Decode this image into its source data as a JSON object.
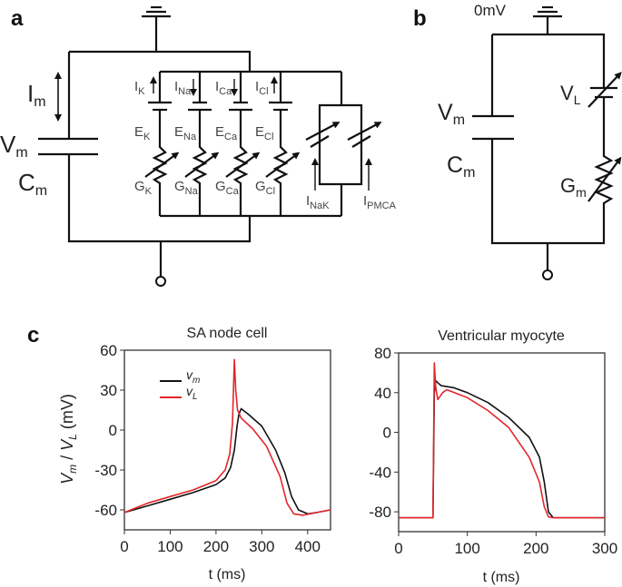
{
  "panels": {
    "a": "a",
    "b": "b",
    "c": "c"
  },
  "circuit_a": {
    "Im": {
      "main": "I",
      "sub": "m"
    },
    "Vm": {
      "main": "V",
      "sub": "m"
    },
    "Cm": {
      "main": "C",
      "sub": "m"
    },
    "currents": [
      {
        "main": "I",
        "sub": "K"
      },
      {
        "main": "I",
        "sub": "Na"
      },
      {
        "main": "I",
        "sub": "Ca"
      },
      {
        "main": "I",
        "sub": "Cl"
      }
    ],
    "reversal": [
      {
        "main": "E",
        "sub": "K"
      },
      {
        "main": "E",
        "sub": "Na"
      },
      {
        "main": "E",
        "sub": "Ca"
      },
      {
        "main": "E",
        "sub": "Cl"
      }
    ],
    "conductances": [
      {
        "main": "G",
        "sub": "K"
      },
      {
        "main": "G",
        "sub": "Na"
      },
      {
        "main": "G",
        "sub": "Ca"
      },
      {
        "main": "G",
        "sub": "Cl"
      }
    ],
    "pumps": [
      {
        "main": "I",
        "sub": "NaK"
      },
      {
        "main": "I",
        "sub": "PMCA"
      }
    ]
  },
  "circuit_b": {
    "ground_label": "0mV",
    "Vm": {
      "main": "V",
      "sub": "m"
    },
    "Cm": {
      "main": "C",
      "sub": "m"
    },
    "VL": {
      "main": "V",
      "sub": "L"
    },
    "Gm": {
      "main": "G",
      "sub": "m"
    }
  },
  "colors": {
    "vm": "#111111",
    "vl": "#e3262b"
  },
  "chart_data": [
    {
      "type": "line",
      "title": "SA node cell",
      "xlabel": "t (ms)",
      "ylabel": {
        "a": "V",
        "a_sub": "m",
        "sep": " / ",
        "b": "V",
        "b_sub": "L",
        "unit": " (mV)"
      },
      "xlim": [
        0,
        450
      ],
      "ylim": [
        -75,
        60
      ],
      "xticks": [
        0,
        100,
        200,
        300,
        400
      ],
      "yticks": [
        -60,
        -30,
        0,
        30,
        60
      ],
      "grid": false,
      "legend": {
        "placement": "top-left",
        "entries": [
          {
            "main": "v",
            "sub": "m"
          },
          {
            "main": "v",
            "sub": "L"
          }
        ]
      },
      "series": [
        {
          "name": "Vm",
          "x": [
            0,
            50,
            100,
            150,
            200,
            220,
            232,
            240,
            246,
            250,
            255,
            270,
            300,
            330,
            350,
            365,
            380,
            400,
            420,
            450
          ],
          "y": [
            -62,
            -57,
            -52,
            -47,
            -41,
            -36,
            -28,
            -15,
            3,
            12,
            16,
            12,
            3,
            -15,
            -32,
            -50,
            -60,
            -63,
            -62,
            -60
          ]
        },
        {
          "name": "VL",
          "x": [
            0,
            50,
            100,
            150,
            200,
            220,
            230,
            236,
            240,
            243,
            247,
            255,
            280,
            310,
            340,
            355,
            370,
            390,
            420,
            450
          ],
          "y": [
            -62,
            -55,
            -50,
            -45,
            -38,
            -30,
            -18,
            5,
            53,
            30,
            15,
            9,
            1,
            -12,
            -35,
            -55,
            -63,
            -64,
            -62,
            -60
          ]
        }
      ]
    },
    {
      "type": "line",
      "title": "Ventricular myocyte",
      "xlabel": "t (ms)",
      "xlim": [
        0,
        300
      ],
      "ylim": [
        -100,
        80
      ],
      "xticks": [
        0,
        100,
        200,
        300
      ],
      "yticks": [
        -80,
        -40,
        0,
        40,
        80
      ],
      "grid": false,
      "series": [
        {
          "name": "Vm",
          "x": [
            0,
            50,
            52,
            54,
            57,
            62,
            80,
            100,
            130,
            160,
            190,
            205,
            212,
            218,
            225,
            300
          ],
          "y": [
            -86,
            -86,
            40,
            52,
            50,
            47,
            45,
            40,
            30,
            15,
            -5,
            -25,
            -50,
            -80,
            -86,
            -86
          ]
        },
        {
          "name": "VL",
          "x": [
            0,
            50,
            52,
            54,
            57,
            60,
            64,
            70,
            100,
            130,
            160,
            190,
            205,
            212,
            218,
            225,
            300
          ],
          "y": [
            -86,
            -86,
            70,
            45,
            33,
            36,
            40,
            43,
            35,
            22,
            5,
            -25,
            -50,
            -75,
            -85,
            -86,
            -86
          ]
        }
      ]
    }
  ]
}
